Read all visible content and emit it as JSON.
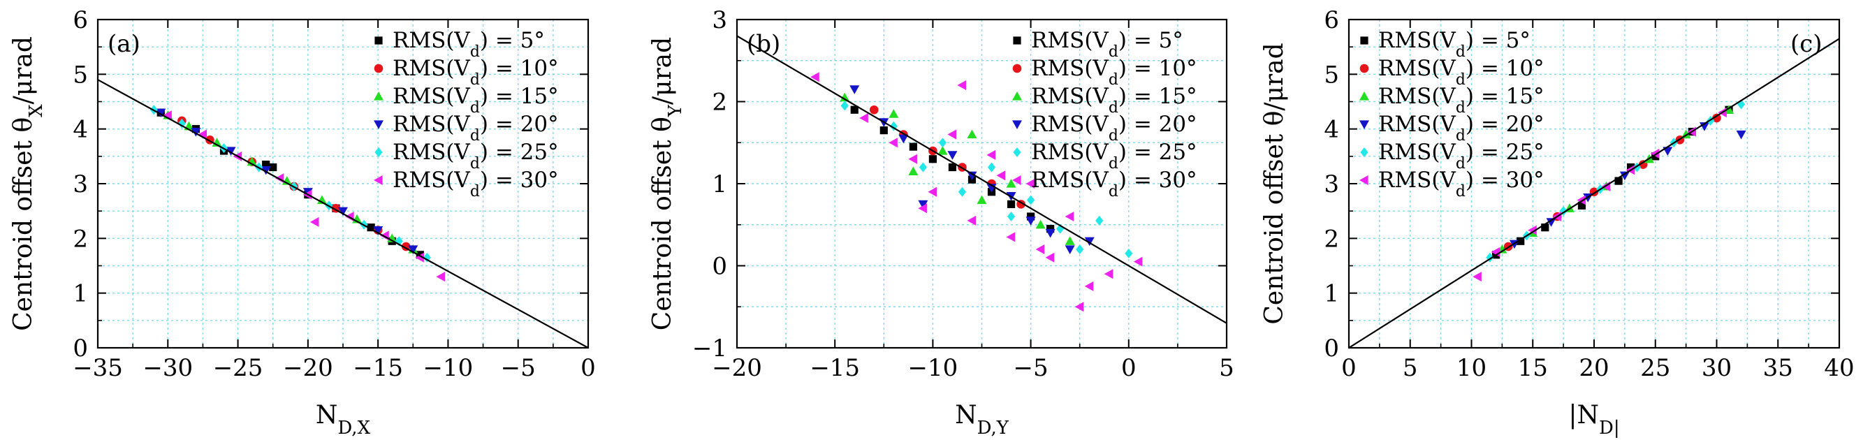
{
  "colors": {
    "s5": "#000000",
    "s10": "#e8141b",
    "s15": "#22dd22",
    "s20": "#1414c8",
    "s25": "#22e8e8",
    "s30": "#ee22ee",
    "grid": "#7fdcea",
    "fit": "#000000"
  },
  "chart_data": [
    {
      "type": "scatter",
      "panel_label": "(a)",
      "xlabel": "N_{D,X}",
      "ylabel": "Centroid offset θ_X/μrad",
      "xlim": [
        -35,
        0
      ],
      "ylim": [
        0,
        6
      ],
      "xticks": [
        -35,
        -30,
        -25,
        -20,
        -15,
        -10,
        -5,
        0
      ],
      "yticks": [
        0,
        1,
        2,
        3,
        4,
        5,
        6
      ],
      "grid": true,
      "legend_position": "top-right",
      "fit_line": {
        "x": [
          -35,
          0
        ],
        "y": [
          4.9,
          0
        ]
      },
      "series": [
        {
          "name": "RMS(V_d) = 5°",
          "marker": "square",
          "color_key": "s5",
          "x": [
            -30.5,
            -28,
            -26,
            -23,
            -22.5,
            -20,
            -18,
            -15.5,
            -14,
            -12
          ],
          "y": [
            4.3,
            4.0,
            3.6,
            3.35,
            3.3,
            2.8,
            2.55,
            2.2,
            1.95,
            1.7
          ]
        },
        {
          "name": "RMS(V_d) = 10°",
          "marker": "circle",
          "color_key": "s10",
          "x": [
            -29,
            -27,
            -24,
            -21,
            -18,
            -15,
            -13
          ],
          "y": [
            4.15,
            3.8,
            3.4,
            2.95,
            2.55,
            2.15,
            1.85
          ]
        },
        {
          "name": "RMS(V_d) = 15°",
          "marker": "triangle-up",
          "color_key": "s15",
          "x": [
            -30,
            -28.5,
            -26.5,
            -24,
            -21.5,
            -19,
            -16.5,
            -14,
            -12.5
          ],
          "y": [
            4.25,
            4.05,
            3.75,
            3.4,
            3.05,
            2.7,
            2.35,
            2.0,
            1.8
          ]
        },
        {
          "name": "RMS(V_d) = 20°",
          "marker": "triangle-down",
          "color_key": "s20",
          "x": [
            -30.5,
            -28,
            -25.5,
            -23,
            -20,
            -17.5,
            -15,
            -12.5
          ],
          "y": [
            4.3,
            3.95,
            3.6,
            3.25,
            2.85,
            2.5,
            2.15,
            1.8
          ]
        },
        {
          "name": "RMS(V_d) = 25°",
          "marker": "diamond",
          "color_key": "s25",
          "x": [
            -31,
            -29,
            -26,
            -23.5,
            -21,
            -18.5,
            -16,
            -13.5,
            -11.5
          ],
          "y": [
            4.35,
            4.1,
            3.65,
            3.3,
            2.95,
            2.6,
            2.25,
            1.95,
            1.65
          ]
        },
        {
          "name": "RMS(V_d) = 30°",
          "marker": "triangle-left",
          "color_key": "s30",
          "x": [
            -30,
            -27.5,
            -25,
            -22,
            -20,
            -17,
            -14.5,
            -12,
            -10.5,
            -19.5
          ],
          "y": [
            4.25,
            3.9,
            3.5,
            3.1,
            2.8,
            2.4,
            2.05,
            1.65,
            1.3,
            2.3
          ]
        }
      ]
    },
    {
      "type": "scatter",
      "panel_label": "(b)",
      "xlabel": "N_{D,Y}",
      "ylabel": "Centroid offset θ_Y/μrad",
      "xlim": [
        -20,
        5
      ],
      "ylim": [
        -1,
        3
      ],
      "xticks": [
        -20,
        -15,
        -10,
        -5,
        0,
        5
      ],
      "yticks": [
        -1,
        0,
        1,
        2,
        3
      ],
      "grid": true,
      "legend_position": "top-right",
      "fit_line": {
        "x": [
          -20,
          5
        ],
        "y": [
          2.8,
          -0.7
        ]
      },
      "series": [
        {
          "name": "RMS(V_d) = 5°",
          "marker": "square",
          "color_key": "s5",
          "x": [
            -14,
            -12.5,
            -11,
            -10,
            -9,
            -8,
            -7,
            -6,
            -5,
            -4
          ],
          "y": [
            1.9,
            1.65,
            1.45,
            1.3,
            1.2,
            1.05,
            0.9,
            0.75,
            0.6,
            0.45
          ]
        },
        {
          "name": "RMS(V_d) = 10°",
          "marker": "circle",
          "color_key": "s10",
          "x": [
            -13,
            -11.5,
            -10,
            -8.5,
            -7,
            -5.5
          ],
          "y": [
            1.9,
            1.6,
            1.4,
            1.2,
            1.0,
            0.75
          ]
        },
        {
          "name": "RMS(V_d) = 15°",
          "marker": "triangle-up",
          "color_key": "s15",
          "x": [
            -14.5,
            -12,
            -11,
            -9.5,
            -8,
            -7.5,
            -6,
            -4.5,
            -3
          ],
          "y": [
            2.05,
            1.85,
            1.15,
            1.4,
            1.6,
            0.8,
            1.0,
            0.5,
            0.3
          ]
        },
        {
          "name": "RMS(V_d) = 20°",
          "marker": "triangle-down",
          "color_key": "s20",
          "x": [
            -14,
            -12.5,
            -11.5,
            -10.5,
            -9,
            -8,
            -7,
            -6,
            -5,
            -4,
            -3,
            -2
          ],
          "y": [
            2.15,
            1.75,
            1.55,
            0.75,
            1.35,
            1.1,
            0.95,
            0.85,
            0.55,
            0.4,
            0.2,
            0.3
          ]
        },
        {
          "name": "RMS(V_d) = 25°",
          "marker": "diamond",
          "color_key": "s25",
          "x": [
            -14.5,
            -12,
            -10.5,
            -9.5,
            -8.5,
            -7,
            -6,
            -5,
            -3.5,
            -2.5,
            -1.5,
            0
          ],
          "y": [
            1.95,
            1.7,
            1.2,
            1.5,
            0.9,
            1.2,
            0.6,
            0.8,
            0.45,
            0.2,
            0.55,
            0.15
          ]
        },
        {
          "name": "RMS(V_d) = 30°",
          "marker": "triangle-left",
          "color_key": "s30",
          "x": [
            -16,
            -13.5,
            -12,
            -11,
            -10,
            -9,
            -8,
            -7,
            -6,
            -5,
            -4,
            -3,
            -2,
            -1,
            0.5,
            -8.5,
            -4.5,
            -6.5,
            -10.5,
            -2.5
          ],
          "y": [
            2.3,
            1.8,
            1.5,
            1.3,
            0.9,
            1.6,
            0.55,
            1.35,
            0.35,
            1.0,
            0.1,
            0.6,
            -0.25,
            -0.1,
            0.05,
            2.2,
            0.2,
            1.1,
            0.7,
            -0.5
          ]
        }
      ]
    },
    {
      "type": "scatter",
      "panel_label": "(c)",
      "xlabel": "|N_D|",
      "ylabel": "Centroid offset θ/μrad",
      "xlim": [
        0,
        40
      ],
      "ylim": [
        0,
        6
      ],
      "xticks": [
        0,
        5,
        10,
        15,
        20,
        25,
        30,
        35,
        40
      ],
      "yticks": [
        0,
        1,
        2,
        3,
        4,
        5,
        6
      ],
      "grid": true,
      "legend_position": "top-left",
      "fit_line": {
        "x": [
          0,
          40
        ],
        "y": [
          0,
          5.65
        ]
      },
      "series": [
        {
          "name": "RMS(V_d) = 5°",
          "marker": "square",
          "color_key": "s5",
          "x": [
            12,
            14,
            16,
            19,
            22,
            23,
            25,
            28,
            31
          ],
          "y": [
            1.7,
            1.95,
            2.2,
            2.6,
            3.05,
            3.3,
            3.5,
            3.95,
            4.35
          ]
        },
        {
          "name": "RMS(V_d) = 10°",
          "marker": "circle",
          "color_key": "s10",
          "x": [
            13,
            17,
            20,
            24,
            27,
            30
          ],
          "y": [
            1.85,
            2.4,
            2.85,
            3.35,
            3.8,
            4.2
          ]
        },
        {
          "name": "RMS(V_d) = 15°",
          "marker": "triangle-up",
          "color_key": "s15",
          "x": [
            12.5,
            15,
            18,
            21,
            24.5,
            27.5,
            31
          ],
          "y": [
            1.8,
            2.1,
            2.55,
            2.95,
            3.45,
            3.9,
            4.35
          ]
        },
        {
          "name": "RMS(V_d) = 20°",
          "marker": "triangle-down",
          "color_key": "s20",
          "x": [
            13.5,
            16.5,
            19.5,
            22.5,
            26,
            29,
            32
          ],
          "y": [
            1.9,
            2.3,
            2.75,
            3.15,
            3.6,
            4.05,
            3.9
          ]
        },
        {
          "name": "RMS(V_d) = 25°",
          "marker": "diamond",
          "color_key": "s25",
          "x": [
            11.5,
            14.5,
            17.5,
            20.5,
            23.5,
            26.5,
            29.5,
            32
          ],
          "y": [
            1.65,
            2.05,
            2.5,
            2.9,
            3.3,
            3.75,
            4.15,
            4.45
          ]
        },
        {
          "name": "RMS(V_d) = 30°",
          "marker": "triangle-left",
          "color_key": "s30",
          "x": [
            10.5,
            12,
            15,
            17,
            19,
            21,
            23,
            25,
            28,
            30.5
          ],
          "y": [
            1.3,
            1.75,
            2.15,
            2.4,
            2.7,
            2.95,
            3.25,
            3.55,
            3.95,
            4.3
          ]
        }
      ]
    }
  ]
}
